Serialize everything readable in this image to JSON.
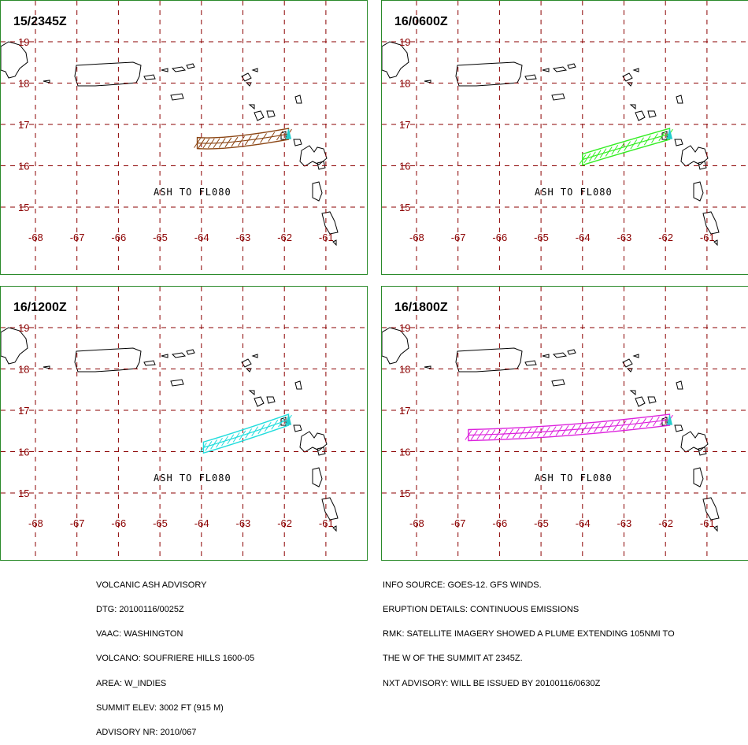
{
  "panels": [
    {
      "title": "15/2345Z",
      "ash_label": "ASH TO FL080",
      "plume_color": "#8b4513",
      "plume": "p1"
    },
    {
      "title": "16/0600Z",
      "ash_label": "ASH TO FL080",
      "plume_color": "#33ee22",
      "plume": "p2"
    },
    {
      "title": "16/1200Z",
      "ash_label": "ASH TO FL080",
      "plume_color": "#22dddd",
      "plume": "p3"
    },
    {
      "title": "16/1800Z",
      "ash_label": "ASH TO FL080",
      "plume_color": "#dd22dd",
      "plume": "p4"
    }
  ],
  "lat_labels": [
    "19",
    "18",
    "17",
    "16",
    "15"
  ],
  "lon_labels": [
    "-68",
    "-67",
    "-66",
    "-65",
    "-64",
    "-63",
    "-62",
    "-61"
  ],
  "colors": {
    "grid": "#8b0000",
    "border": "#2a8a2a",
    "vent": "#22cccc",
    "land": "#000000"
  },
  "advisory_left": [
    "VOLCANIC ASH ADVISORY",
    "DTG: 20100116/0025Z",
    "VAAC: WASHINGTON",
    "VOLCANO: SOUFRIERE HILLS 1600-05",
    "AREA: W_INDIES",
    "SUMMIT ELEV: 3002 FT (915 M)",
    "ADVISORY NR: 2010/067"
  ],
  "advisory_right": [
    "INFO SOURCE: GOES-12. GFS WINDS.",
    "ERUPTION DETAILS: CONTINUOUS EMISSIONS",
    "RMK: SATELLITE IMAGERY SHOWED A PLUME EXTENDING 105NMI TO",
    "THE W OF THE SUMMIT AT 2345Z.",
    "NXT ADVISORY: WILL BE ISSUED BY 20100116/0630Z"
  ]
}
